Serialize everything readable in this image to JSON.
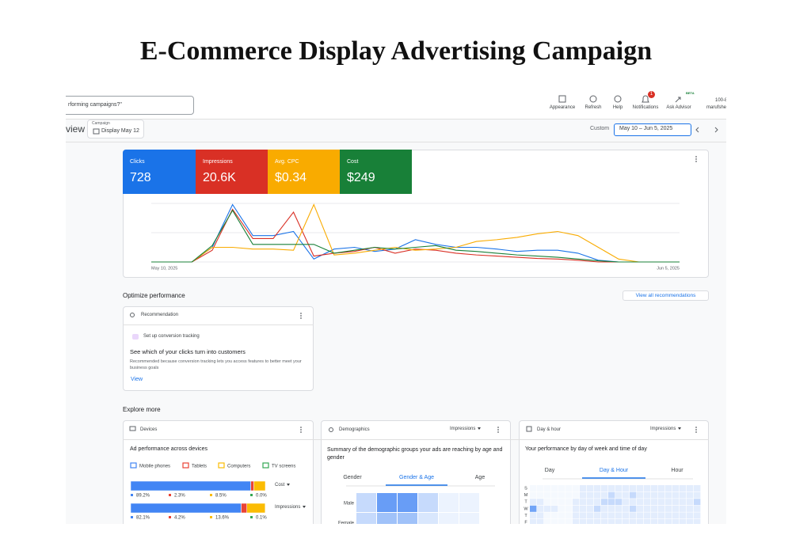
{
  "title": "E-Commerce Display Advertising Campaign",
  "toolbar": {
    "search": "rforming campaigns?\"",
    "actions": [
      "Appearance",
      "Refresh",
      "Help",
      "Notifications",
      "Ask Advisor"
    ],
    "notification_count": "1",
    "beta": "BETA",
    "account_id": "100-8",
    "account_name": "marufshe"
  },
  "header": {
    "page": "view",
    "campaign_label": "Campaign",
    "campaign": "Display May 12",
    "range_label": "Custom",
    "date_range": "May 10 – Jun 5, 2025"
  },
  "metrics": [
    "728",
    "20.6K",
    "$0.34",
    "$249"
  ],
  "chart_data": {
    "type": "line",
    "categories": [
      "May 10, 2025",
      null,
      null,
      null,
      null,
      null,
      null,
      null,
      null,
      null,
      null,
      null,
      null,
      null,
      null,
      null,
      null,
      null,
      null,
      null,
      null,
      null,
      null,
      null,
      null,
      null,
      "Jun 5, 2025"
    ],
    "ylim": [
      0,
      100
    ],
    "series": [
      {
        "name": "Clicks",
        "color": "#1a73e8",
        "values": [
          0,
          0,
          0,
          25,
          98,
          45,
          45,
          52,
          5,
          22,
          25,
          18,
          22,
          38,
          30,
          25,
          25,
          22,
          18,
          20,
          20,
          15,
          3,
          0,
          0,
          0,
          0
        ]
      },
      {
        "name": "Impressions",
        "color": "#d93025",
        "values": [
          0,
          0,
          0,
          20,
          90,
          40,
          40,
          85,
          10,
          15,
          18,
          25,
          15,
          22,
          20,
          15,
          12,
          10,
          8,
          6,
          5,
          3,
          0,
          0,
          0,
          0,
          0
        ]
      },
      {
        "name": "Avg. CPC",
        "color": "#f9ab00",
        "values": [
          0,
          0,
          0,
          25,
          25,
          22,
          22,
          20,
          98,
          12,
          15,
          20,
          25,
          20,
          22,
          25,
          35,
          38,
          42,
          48,
          52,
          45,
          25,
          5,
          0,
          0,
          0
        ]
      },
      {
        "name": "Cost",
        "color": "#188038",
        "values": [
          0,
          0,
          0,
          28,
          88,
          30,
          30,
          30,
          30,
          15,
          20,
          25,
          22,
          25,
          28,
          20,
          18,
          15,
          12,
          10,
          8,
          5,
          2,
          0,
          0,
          0,
          0
        ]
      }
    ]
  },
  "optimize": {
    "heading": "Optimize performance",
    "link": "View all recommendations",
    "card": {
      "label": "Recommendation",
      "action": "Set up conversion tracking",
      "headline": "See which of your clicks turn into customers",
      "description": "Recommended because conversion tracking lets you access features to better meet your business goals",
      "cta": "View"
    }
  },
  "explore": {
    "heading": "Explore more",
    "devices": {
      "label": "Devices",
      "heading": "Ad performance across devices",
      "legend": [
        "Mobile phones",
        "Tablets",
        "Computers",
        "TV screens"
      ],
      "colors": [
        "#4285f4",
        "#ea4335",
        "#fbbc04",
        "#34a853"
      ],
      "rows": [
        {
          "metric": "Cost",
          "values": [
            89.2,
            2.3,
            8.5,
            0.0
          ],
          "value_labels": [
            "89.2%",
            "2.3%",
            "8.5%",
            "0.0%"
          ]
        },
        {
          "metric": "Impressions",
          "values": [
            82.1,
            4.2,
            13.6,
            0.1
          ],
          "value_labels": [
            "82.1%",
            "4.2%",
            "13.6%",
            "0.1%"
          ]
        }
      ]
    },
    "demographics": {
      "label": "Demographics",
      "metric": "Impressions",
      "heading": "Summary of the demographic groups your ads are reaching by age and gender",
      "tabs": [
        "Gender",
        "Gender & Age",
        "Age"
      ],
      "rows": [
        "Male",
        "Female"
      ],
      "heatmap": [
        [
          0.3,
          0.8,
          0.8,
          0.3,
          0.1,
          0.1
        ],
        [
          0.3,
          0.5,
          0.5,
          0.2,
          0.1,
          0.1
        ]
      ]
    },
    "day_hour": {
      "label": "Day & hour",
      "metric": "Impressions",
      "heading": "Your performance by day of week and time of day",
      "tabs": [
        "Day",
        "Day & Hour",
        "Hour"
      ],
      "days": [
        "S",
        "M",
        "T",
        "W",
        "T",
        "F"
      ],
      "heatmap": [
        [
          0,
          0,
          0,
          0,
          0,
          0,
          0,
          1,
          1,
          1,
          1,
          1,
          1,
          1,
          1,
          1,
          1,
          1,
          1,
          1,
          1,
          1,
          1,
          1
        ],
        [
          0,
          0,
          0,
          0,
          0,
          0,
          0,
          1,
          1,
          1,
          1,
          2,
          1,
          1,
          2,
          1,
          1,
          1,
          1,
          1,
          1,
          1,
          1,
          1
        ],
        [
          1,
          1,
          0,
          0,
          0,
          0,
          1,
          1,
          1,
          1,
          2,
          2,
          2,
          1,
          1,
          1,
          1,
          1,
          1,
          1,
          1,
          1,
          1,
          2
        ],
        [
          3,
          1,
          1,
          1,
          0,
          0,
          1,
          1,
          1,
          2,
          1,
          1,
          1,
          1,
          2,
          1,
          1,
          1,
          1,
          1,
          1,
          1,
          1,
          1
        ],
        [
          1,
          1,
          0,
          0,
          0,
          0,
          1,
          1,
          1,
          1,
          1,
          1,
          1,
          1,
          1,
          1,
          1,
          1,
          1,
          1,
          1,
          1,
          1,
          1
        ],
        [
          1,
          1,
          0,
          0,
          0,
          0,
          1,
          1,
          1,
          1,
          1,
          1,
          1,
          1,
          1,
          1,
          1,
          1,
          1,
          1,
          1,
          1,
          1,
          1
        ]
      ]
    }
  }
}
